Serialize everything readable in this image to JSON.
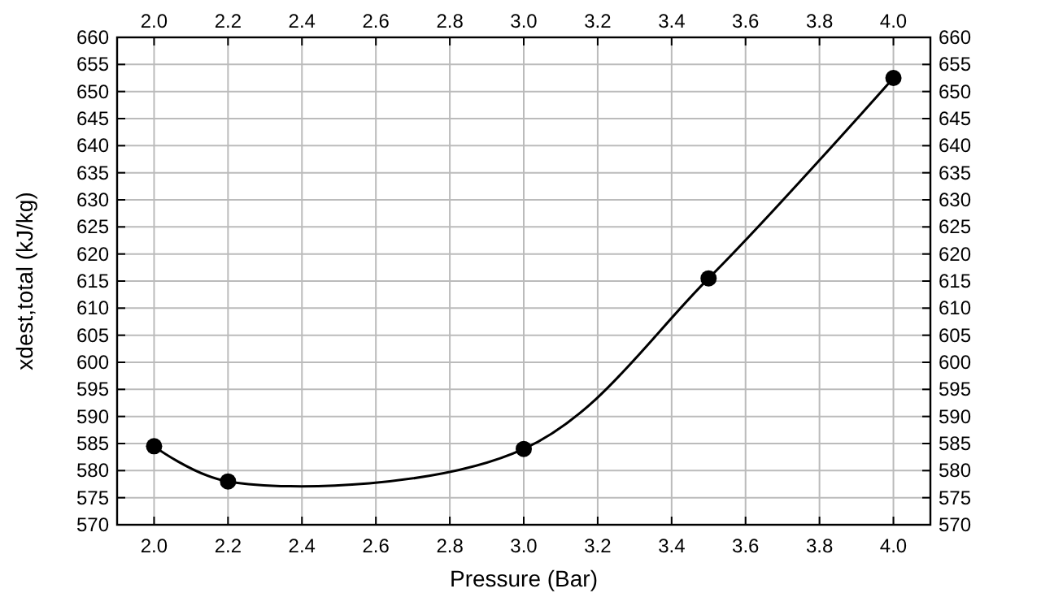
{
  "chart_data": {
    "type": "line",
    "xlabel": "Pressure (Bar)",
    "ylabel": "xdest,total (kJ/kg)",
    "x": [
      2.0,
      2.2,
      3.0,
      3.5,
      4.0
    ],
    "series": [
      {
        "color": "#000000",
        "values": [
          584.5,
          578,
          584,
          615.5,
          652.5
        ]
      }
    ],
    "marker": "circle",
    "line_style": "solid",
    "grid": true,
    "xlim": [
      1.9,
      4.1
    ],
    "xticks": [
      {
        "value": 2,
        "label": "2.0"
      },
      2.2,
      2.4,
      2.6,
      2.8,
      {
        "value": 3,
        "label": "3.0"
      },
      3.2,
      3.4,
      3.6,
      3.8,
      {
        "value": 4,
        "label": "4.0"
      }
    ],
    "x2lim": [
      1.9,
      4.1
    ],
    "x2ticks": [
      {
        "value": 2,
        "label": "2.0"
      },
      2.2,
      2.4,
      2.6,
      2.8,
      {
        "value": 3,
        "label": "3.0"
      },
      3.2,
      3.4,
      3.6,
      3.8,
      {
        "value": 4,
        "label": "4.0"
      }
    ],
    "ylim": [
      570,
      660
    ],
    "yticks": [
      570,
      575,
      580,
      585,
      590,
      595,
      600,
      605,
      610,
      615,
      620,
      625,
      630,
      635,
      640,
      645,
      650,
      655,
      660
    ],
    "y2lim": [
      570,
      660
    ],
    "y2ticks": [
      570,
      575,
      580,
      585,
      590,
      595,
      600,
      605,
      610,
      615,
      620,
      625,
      630,
      635,
      640,
      645,
      650,
      655,
      660
    ]
  }
}
